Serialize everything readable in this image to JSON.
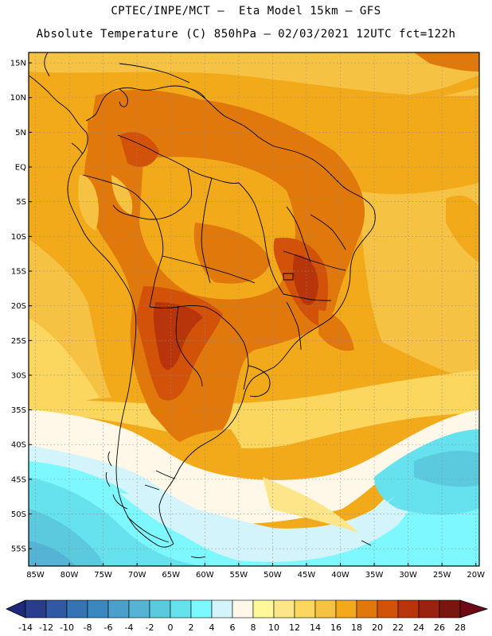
{
  "header": {
    "line1": "CPTEC/INPE/MCT —  Eta Model 15km — GFS",
    "line2": "Absolute Temperature (C) 850hPa — 02/03/2021 12UTC fct=122h"
  },
  "map": {
    "lat_labels": [
      "15N",
      "10N",
      "5N",
      "EQ",
      "5S",
      "10S",
      "15S",
      "20S",
      "25S",
      "30S",
      "35S",
      "40S",
      "45S",
      "50S",
      "55S"
    ],
    "lon_labels": [
      "85W",
      "80W",
      "75W",
      "70W",
      "65W",
      "60W",
      "55W",
      "50W",
      "45W",
      "40W",
      "35W",
      "30W",
      "25W",
      "20W"
    ],
    "lat_range": [
      -57.5,
      16.5
    ],
    "lon_range": [
      -86.0,
      -19.5
    ]
  },
  "colorbar": {
    "ticks": [
      "-14",
      "-12",
      "-10",
      "-8",
      "-6",
      "-4",
      "-2",
      "0",
      "2",
      "4",
      "6",
      "8",
      "10",
      "12",
      "14",
      "16",
      "18",
      "20",
      "22",
      "24",
      "26",
      "28"
    ],
    "colors": [
      "#2a3c8c",
      "#2f5aa3",
      "#3474b2",
      "#3a88bf",
      "#4aa0cb",
      "#55b4d6",
      "#5ccade",
      "#66e2ee",
      "#7ef8ff",
      "#d4f4fc",
      "#fff8e8",
      "#fff89a",
      "#fde68a",
      "#fbd760",
      "#f6c244",
      "#f2aa1a",
      "#e0780c",
      "#d2520a",
      "#b8340a",
      "#9a220e",
      "#7a1610"
    ]
  }
}
